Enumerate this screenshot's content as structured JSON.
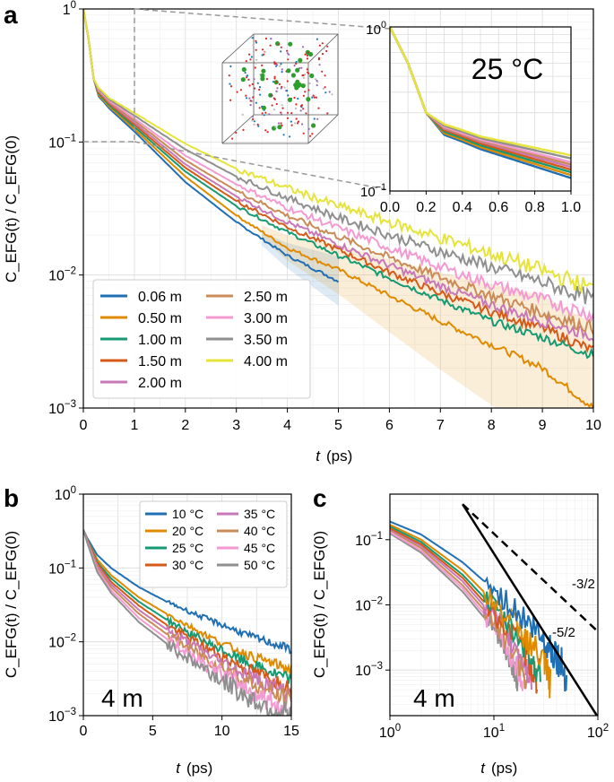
{
  "panel_labels": {
    "a": "a",
    "b": "b",
    "c": "c"
  },
  "colors": {
    "c0": "#1f6fb4",
    "c1": "#e08a00",
    "c2": "#159a72",
    "c3": "#d55a17",
    "c4": "#c877b7",
    "c5": "#c98c58",
    "c6": "#f49ad2",
    "c7": "#8f8f8f",
    "c8": "#e6e43a"
  },
  "chart_data": [
    {
      "id": "a",
      "type": "line",
      "title": "",
      "xlabel_main": "t",
      "xlabel_unit": "(ps)",
      "ylabel": "C_EFG(t) / C_EFG(0)",
      "xlim": [
        0,
        10
      ],
      "ylim": [
        0.001,
        1
      ],
      "yscale": "log",
      "grid": true,
      "x_ticks": [
        "0",
        "1",
        "2",
        "3",
        "4",
        "5",
        "6",
        "7",
        "8",
        "9",
        "10"
      ],
      "legend_location": "lower-left",
      "series": [
        {
          "name": "0.06 m",
          "t": [
            0,
            0.1,
            0.2,
            0.3,
            0.4,
            0.5,
            1,
            2,
            3,
            4,
            5,
            6,
            7,
            8,
            9,
            10
          ],
          "values": [
            1,
            0.6,
            0.3,
            0.22,
            0.2,
            0.18,
            0.12,
            0.05,
            0.025,
            0.014,
            0.009,
            null,
            null,
            null,
            null,
            null
          ]
        },
        {
          "name": "0.50 m",
          "t": [
            0,
            0.1,
            0.2,
            0.3,
            0.4,
            0.5,
            1,
            2,
            3,
            4,
            5,
            6,
            7,
            8,
            9,
            10
          ],
          "values": [
            1,
            0.6,
            0.3,
            0.225,
            0.205,
            0.185,
            0.125,
            0.055,
            0.028,
            0.016,
            0.011,
            0.007,
            0.0045,
            0.003,
            0.002,
            0.001
          ]
        },
        {
          "name": "1.00 m",
          "t": [
            0,
            0.1,
            0.2,
            0.3,
            0.4,
            0.5,
            1,
            2,
            3,
            4,
            5,
            6,
            7,
            8,
            9,
            10
          ],
          "values": [
            1,
            0.6,
            0.3,
            0.23,
            0.21,
            0.19,
            0.13,
            0.06,
            0.033,
            0.021,
            0.014,
            0.0095,
            0.0065,
            0.0045,
            0.0034,
            0.0025
          ]
        },
        {
          "name": "1.50 m",
          "t": [
            0,
            0.1,
            0.2,
            0.3,
            0.4,
            0.5,
            1,
            2,
            3,
            4,
            5,
            6,
            7,
            8,
            9,
            10
          ],
          "values": [
            1,
            0.6,
            0.3,
            0.235,
            0.215,
            0.195,
            0.135,
            0.064,
            0.036,
            0.023,
            0.0155,
            0.0105,
            0.0073,
            0.0053,
            0.004,
            0.0027
          ]
        },
        {
          "name": "2.00 m",
          "t": [
            0,
            0.1,
            0.2,
            0.3,
            0.4,
            0.5,
            1,
            2,
            3,
            4,
            5,
            6,
            7,
            8,
            9,
            10
          ],
          "values": [
            1,
            0.6,
            0.3,
            0.24,
            0.22,
            0.2,
            0.14,
            0.068,
            0.039,
            0.025,
            0.017,
            0.0118,
            0.0083,
            0.006,
            0.0045,
            0.0035
          ]
        },
        {
          "name": "2.50 m",
          "t": [
            0,
            0.1,
            0.2,
            0.3,
            0.4,
            0.5,
            1,
            2,
            3,
            4,
            5,
            6,
            7,
            8,
            9,
            10
          ],
          "values": [
            1,
            0.6,
            0.3,
            0.243,
            0.222,
            0.203,
            0.145,
            0.073,
            0.043,
            0.028,
            0.0195,
            0.0135,
            0.0096,
            0.007,
            0.0052,
            0.004
          ]
        },
        {
          "name": "3.00 m",
          "t": [
            0,
            0.1,
            0.2,
            0.3,
            0.4,
            0.5,
            1,
            2,
            3,
            4,
            5,
            6,
            7,
            8,
            9,
            10
          ],
          "values": [
            1,
            0.6,
            0.3,
            0.246,
            0.225,
            0.206,
            0.15,
            0.079,
            0.048,
            0.032,
            0.0225,
            0.016,
            0.0115,
            0.0085,
            0.0065,
            0.005
          ]
        },
        {
          "name": "3.50 m",
          "t": [
            0,
            0.1,
            0.2,
            0.3,
            0.4,
            0.5,
            1,
            2,
            3,
            4,
            5,
            6,
            7,
            8,
            9,
            10
          ],
          "values": [
            1,
            0.6,
            0.3,
            0.25,
            0.23,
            0.21,
            0.158,
            0.088,
            0.055,
            0.038,
            0.027,
            0.02,
            0.015,
            0.0115,
            0.0088,
            0.0066
          ]
        },
        {
          "name": "4.00 m",
          "t": [
            0,
            0.1,
            0.2,
            0.3,
            0.4,
            0.5,
            1,
            2,
            3,
            4,
            5,
            6,
            7,
            8,
            9,
            10
          ],
          "values": [
            1,
            0.6,
            0.3,
            0.255,
            0.235,
            0.215,
            0.165,
            0.097,
            0.063,
            0.045,
            0.033,
            0.025,
            0.019,
            0.0145,
            0.0108,
            0.0079
          ]
        }
      ],
      "inset": {
        "label": "25 °C",
        "xlim": [
          0,
          1
        ],
        "ylim": [
          0.1,
          1
        ],
        "x_ticks": [
          "0.0",
          "0.2",
          "0.4",
          "0.6",
          "0.8",
          "1.0"
        ]
      }
    },
    {
      "id": "b",
      "type": "line",
      "xlabel_main": "t",
      "xlabel_unit": "(ps)",
      "ylabel": "C_EFG(t) / C_EFG(0)",
      "xlim": [
        0,
        15
      ],
      "ylim": [
        0.001,
        1
      ],
      "yscale": "log",
      "x_ticks": [
        "0",
        "5",
        "10",
        "15"
      ],
      "annotation": "4 m",
      "legend_location": "top-right",
      "series": [
        {
          "name": "10 °C",
          "t": [
            0,
            0.3,
            1,
            2,
            4,
            6,
            8,
            10,
            12,
            15
          ],
          "values": [
            0.33,
            0.25,
            0.15,
            0.1,
            0.055,
            0.035,
            0.024,
            0.017,
            0.012,
            0.0079
          ]
        },
        {
          "name": "20 °C",
          "t": [
            0,
            0.3,
            1,
            2,
            4,
            6,
            8,
            10,
            12,
            15
          ],
          "values": [
            0.33,
            0.24,
            0.13,
            0.08,
            0.04,
            0.024,
            0.015,
            0.0095,
            0.0065,
            0.0042
          ]
        },
        {
          "name": "25 °C",
          "t": [
            0,
            0.3,
            1,
            2,
            4,
            6,
            8,
            10,
            12,
            15
          ],
          "values": [
            0.33,
            0.24,
            0.12,
            0.072,
            0.035,
            0.02,
            0.012,
            0.0076,
            0.005,
            0.003
          ]
        },
        {
          "name": "30 °C",
          "t": [
            0,
            0.3,
            1,
            2,
            4,
            6,
            8,
            10,
            12,
            15
          ],
          "values": [
            0.33,
            0.235,
            0.115,
            0.065,
            0.031,
            0.017,
            0.0102,
            0.0063,
            0.0041,
            0.0024
          ]
        },
        {
          "name": "35 °C",
          "t": [
            0,
            0.3,
            1,
            2,
            4,
            6,
            8,
            10,
            12,
            15
          ],
          "values": [
            0.33,
            0.23,
            0.108,
            0.06,
            0.027,
            0.0148,
            0.0087,
            0.0053,
            0.0034,
            0.0019
          ]
        },
        {
          "name": "40 °C",
          "t": [
            0,
            0.3,
            1,
            2,
            4,
            6,
            8,
            10,
            12,
            15
          ],
          "values": [
            0.33,
            0.225,
            0.1,
            0.055,
            0.024,
            0.0128,
            0.0074,
            0.0045,
            0.0028,
            0.0015
          ]
        },
        {
          "name": "45 °C",
          "t": [
            0,
            0.3,
            1,
            2,
            4,
            6,
            8,
            10,
            12,
            15
          ],
          "values": [
            0.33,
            0.22,
            0.094,
            0.05,
            0.021,
            0.011,
            0.0063,
            0.0037,
            0.0022,
            0.0011
          ]
        },
        {
          "name": "50 °C",
          "t": [
            0,
            0.3,
            1,
            2,
            4,
            6,
            8,
            10,
            12,
            15
          ],
          "values": [
            0.33,
            0.215,
            0.088,
            0.046,
            0.0185,
            0.0095,
            0.0053,
            0.003,
            0.0017,
            0.001
          ]
        }
      ]
    },
    {
      "id": "c",
      "type": "line",
      "xlabel_main": "t",
      "xlabel_unit": "(ps)",
      "ylabel": "C_EFG(t) / C_EFG(0)",
      "xlim": [
        1,
        100
      ],
      "ylim": [
        0.0002,
        0.5
      ],
      "xscale": "log",
      "yscale": "log",
      "annotation": "4 m",
      "guides": [
        {
          "name": "-3/2",
          "style": "dashed",
          "t": [
            5,
            100
          ],
          "values": [
            0.35,
            0.0039
          ]
        },
        {
          "name": "-5/2",
          "style": "solid",
          "t": [
            5,
            100
          ],
          "values": [
            0.35,
            0.00019
          ]
        }
      ],
      "series": [
        {
          "name": "10 °C",
          "t": [
            1,
            2,
            5,
            10,
            20,
            30,
            40,
            50
          ],
          "values": [
            0.19,
            0.12,
            0.045,
            0.017,
            0.006,
            0.003,
            0.0017,
            0.0008
          ]
        },
        {
          "name": "20 °C",
          "t": [
            1,
            2,
            5,
            10,
            20,
            30,
            35
          ],
          "values": [
            0.17,
            0.1,
            0.034,
            0.011,
            0.0033,
            0.0013,
            0.0006
          ]
        },
        {
          "name": "25 °C",
          "t": [
            1,
            2,
            5,
            10,
            20,
            28
          ],
          "values": [
            0.16,
            0.092,
            0.029,
            0.009,
            0.0024,
            0.0008
          ]
        },
        {
          "name": "30 °C",
          "t": [
            1,
            2,
            5,
            10,
            20,
            26
          ],
          "values": [
            0.15,
            0.085,
            0.026,
            0.0075,
            0.0019,
            0.0007
          ]
        },
        {
          "name": "35 °C",
          "t": [
            1,
            2,
            5,
            10,
            18,
            23
          ],
          "values": [
            0.145,
            0.08,
            0.023,
            0.0065,
            0.0018,
            0.0007
          ]
        },
        {
          "name": "40 °C",
          "t": [
            1,
            2,
            5,
            10,
            17,
            21
          ],
          "values": [
            0.14,
            0.074,
            0.02,
            0.0056,
            0.0015,
            0.0007
          ]
        },
        {
          "name": "45 °C",
          "t": [
            1,
            2,
            5,
            10,
            16,
            19
          ],
          "values": [
            0.13,
            0.068,
            0.018,
            0.0048,
            0.0013,
            0.0007
          ]
        },
        {
          "name": "50 °C",
          "t": [
            1,
            2,
            5,
            10,
            15,
            17
          ],
          "values": [
            0.125,
            0.063,
            0.016,
            0.0042,
            0.0012,
            0.0007
          ]
        }
      ]
    }
  ]
}
